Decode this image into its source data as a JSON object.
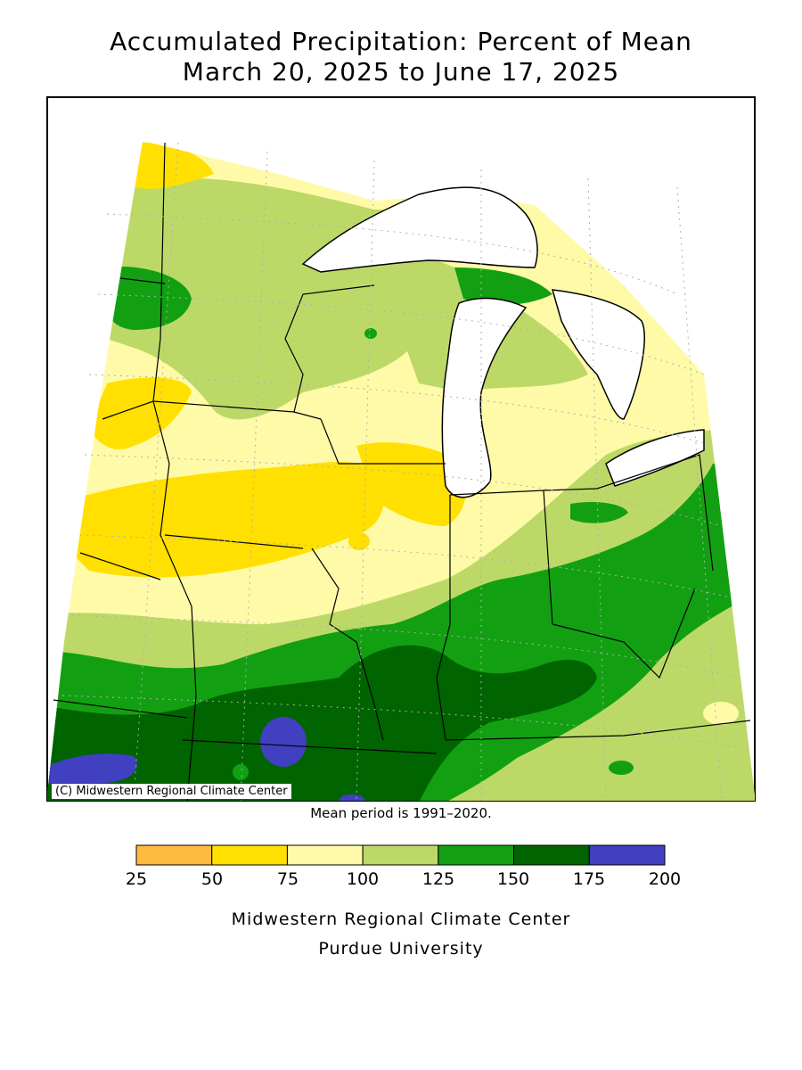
{
  "title": {
    "line1": "Accumulated Precipitation: Percent of Mean",
    "line2": "March 20, 2025 to June 17, 2025"
  },
  "copyright": "(C) Midwestern Regional Climate Center",
  "mean_period": "Mean period is 1991–2020.",
  "legend": {
    "bins": [
      {
        "from": 25,
        "to": 50,
        "color": "#ffbb40"
      },
      {
        "from": 50,
        "to": 75,
        "color": "#ffe000"
      },
      {
        "from": 75,
        "to": 100,
        "color": "#fffaa8"
      },
      {
        "from": 100,
        "to": 125,
        "color": "#bcd968"
      },
      {
        "from": 125,
        "to": 150,
        "color": "#12a012"
      },
      {
        "from": 150,
        "to": 175,
        "color": "#006400"
      },
      {
        "from": 175,
        "to": 200,
        "color": "#4040c0"
      }
    ],
    "ticks": [
      "25",
      "50",
      "75",
      "100",
      "125",
      "150",
      "175",
      "200"
    ]
  },
  "credit": {
    "line1": "Midwestern Regional Climate Center",
    "line2": "Purdue University"
  },
  "colors": {
    "lake": "#ffffff",
    "border": "#000000"
  }
}
